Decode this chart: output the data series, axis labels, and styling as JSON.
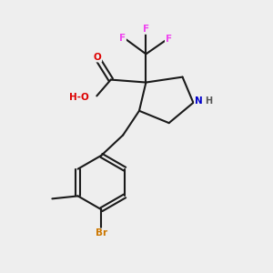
{
  "bg_color": "#eeeeee",
  "bond_color": "#1a1a1a",
  "atom_colors": {
    "F": "#ee44ee",
    "O": "#dd0000",
    "N": "#0000cc",
    "Br": "#cc7700",
    "C": "#1a1a1a",
    "H": "#555555"
  }
}
